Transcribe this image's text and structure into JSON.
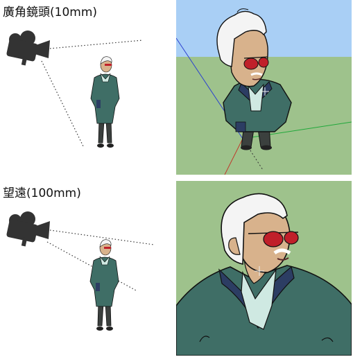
{
  "sections": [
    {
      "label": "廣角鏡頭(10mm)"
    },
    {
      "label": "望遠(100mm)"
    }
  ],
  "icons": {
    "camera": "video-camera-icon",
    "person": "standing-man-figure"
  },
  "colors": {
    "sky": "#a9cff5",
    "ground": "#9ec28c",
    "jacket": "#3f6e66",
    "collar": "#2c3d63",
    "shirt": "#cfe9e2",
    "skin": "#d8b28c",
    "hair": "#f4f4f4",
    "sunglasses": "#c0202a",
    "trousers": "#3b403e",
    "camera": "#333333"
  }
}
